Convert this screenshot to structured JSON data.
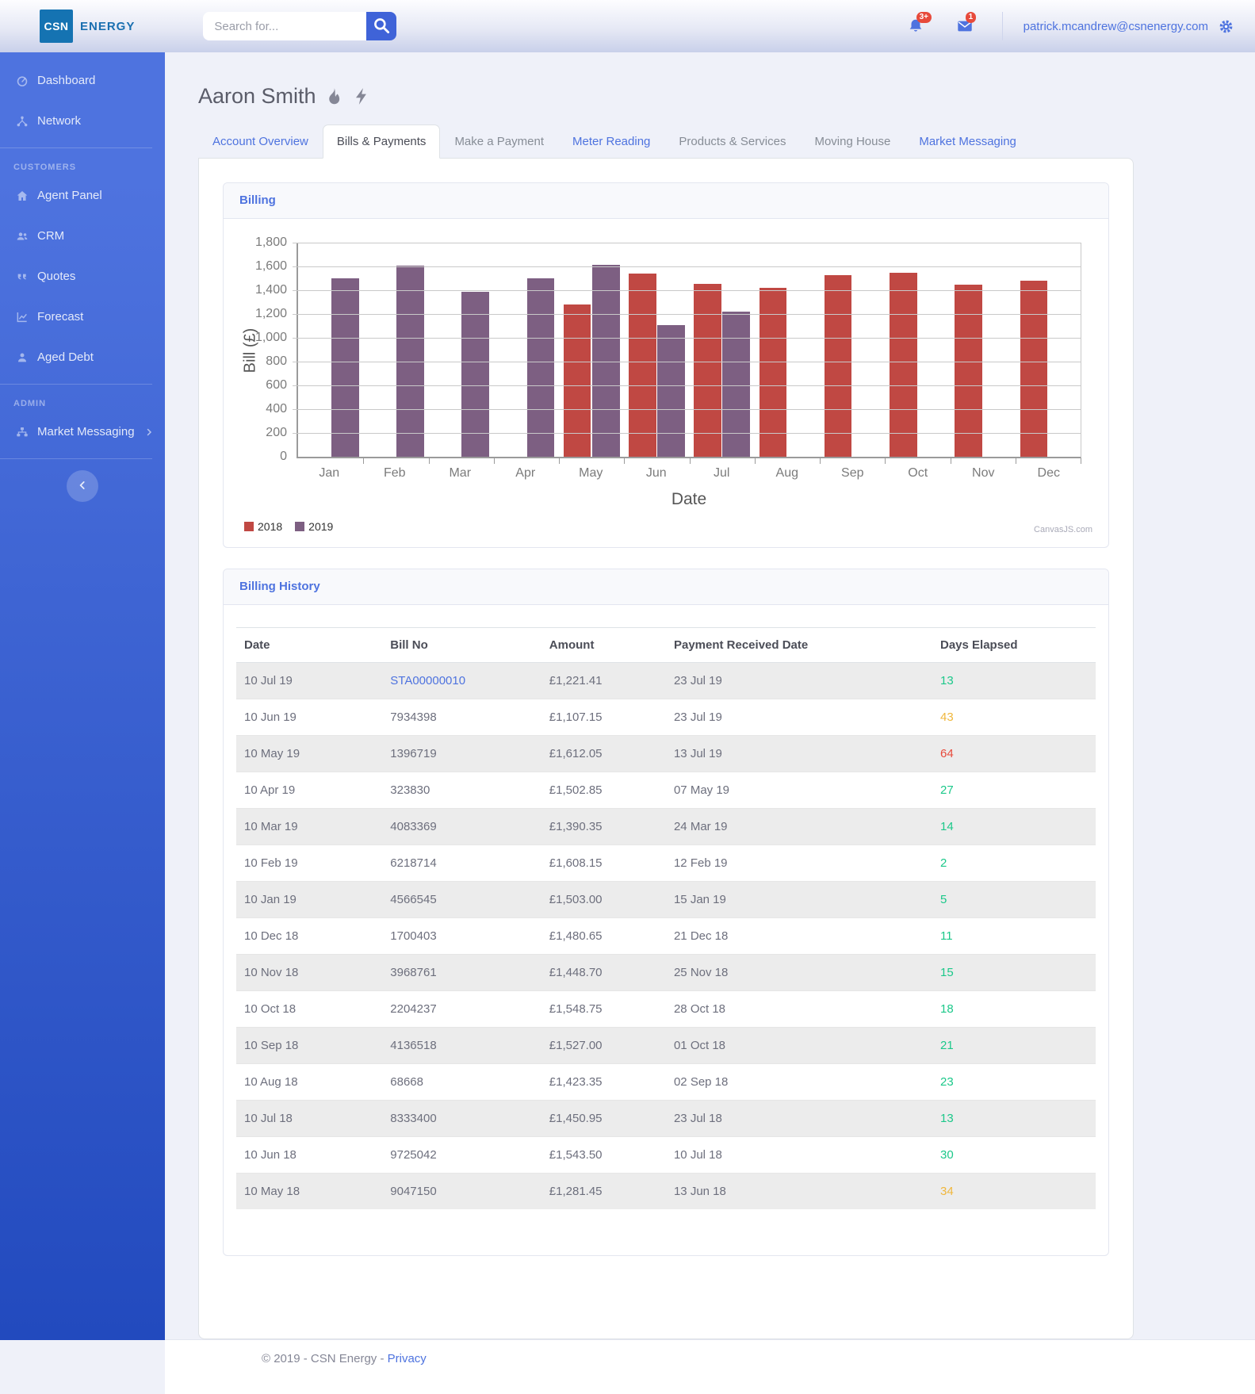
{
  "topbar": {
    "logo": {
      "abbr": "CSN",
      "name": "ENERGY"
    },
    "search": {
      "placeholder": "Search for..."
    },
    "notifications": {
      "bell_badge": "3+",
      "mail_badge": "1"
    },
    "user_email": "patrick.mcandrew@csnenergy.com"
  },
  "sidebar": {
    "sections": [
      {
        "heading": null,
        "items": [
          {
            "label": "Dashboard",
            "icon": "dashboard-icon"
          },
          {
            "label": "Network",
            "icon": "network-icon"
          }
        ]
      },
      {
        "heading": "CUSTOMERS",
        "items": [
          {
            "label": "Agent Panel",
            "icon": "home-icon"
          },
          {
            "label": "CRM",
            "icon": "users-icon"
          },
          {
            "label": "Quotes",
            "icon": "quote-icon"
          },
          {
            "label": "Forecast",
            "icon": "forecast-icon"
          },
          {
            "label": "Aged Debt",
            "icon": "person-icon"
          }
        ]
      },
      {
        "heading": "ADMIN",
        "items": [
          {
            "label": "Market Messaging",
            "icon": "sitemap-icon",
            "expandable": true
          }
        ]
      }
    ]
  },
  "page": {
    "title": "Aaron Smith",
    "title_icons": [
      "gas-icon",
      "electricity-icon"
    ],
    "tabs": [
      {
        "label": "Account Overview",
        "state": "link"
      },
      {
        "label": "Bills & Payments",
        "state": "active"
      },
      {
        "label": "Make a Payment",
        "state": "muted"
      },
      {
        "label": "Meter Reading",
        "state": "link"
      },
      {
        "label": "Products & Services",
        "state": "muted"
      },
      {
        "label": "Moving House",
        "state": "muted"
      },
      {
        "label": "Market Messaging",
        "state": "link"
      }
    ]
  },
  "billing_card": {
    "title": "Billing"
  },
  "chart_data": {
    "type": "bar",
    "title": "",
    "categories": [
      "Jan",
      "Feb",
      "Mar",
      "Apr",
      "May",
      "Jun",
      "Jul",
      "Aug",
      "Sep",
      "Oct",
      "Nov",
      "Dec"
    ],
    "series": [
      {
        "name": "2018",
        "color": "#c04843",
        "values": [
          null,
          null,
          null,
          null,
          1281.45,
          1543.5,
          1450.95,
          1423.35,
          1527.0,
          1548.75,
          1448.7,
          1480.65
        ]
      },
      {
        "name": "2019",
        "color": "#7d5f82",
        "values": [
          1503.0,
          1608.15,
          1390.35,
          1502.85,
          1612.05,
          1107.15,
          1221.41,
          null,
          null,
          null,
          null,
          null
        ]
      }
    ],
    "xlabel": "Date",
    "ylabel": "Bill (£)",
    "ylim": [
      0,
      1800
    ],
    "ytick_step": 200,
    "grid": true,
    "legend_position": "bottom-left",
    "watermark": "CanvasJS.com"
  },
  "history_card": {
    "title": "Billing History",
    "columns": [
      "Date",
      "Bill No",
      "Amount",
      "Payment Received Date",
      "Days Elapsed"
    ],
    "rows": [
      {
        "date": "10 Jul 19",
        "bill_no": "STA00000010",
        "bill_no_link": true,
        "amount": "£1,221.41",
        "received": "23 Jul 19",
        "days": "13",
        "days_color": "green"
      },
      {
        "date": "10 Jun 19",
        "bill_no": "7934398",
        "bill_no_link": false,
        "amount": "£1,107.15",
        "received": "23 Jul 19",
        "days": "43",
        "days_color": "amber"
      },
      {
        "date": "10 May 19",
        "bill_no": "1396719",
        "bill_no_link": false,
        "amount": "£1,612.05",
        "received": "13 Jul 19",
        "days": "64",
        "days_color": "red"
      },
      {
        "date": "10 Apr 19",
        "bill_no": "323830",
        "bill_no_link": false,
        "amount": "£1,502.85",
        "received": "07 May 19",
        "days": "27",
        "days_color": "green"
      },
      {
        "date": "10 Mar 19",
        "bill_no": "4083369",
        "bill_no_link": false,
        "amount": "£1,390.35",
        "received": "24 Mar 19",
        "days": "14",
        "days_color": "green"
      },
      {
        "date": "10 Feb 19",
        "bill_no": "6218714",
        "bill_no_link": false,
        "amount": "£1,608.15",
        "received": "12 Feb 19",
        "days": "2",
        "days_color": "green"
      },
      {
        "date": "10 Jan 19",
        "bill_no": "4566545",
        "bill_no_link": false,
        "amount": "£1,503.00",
        "received": "15 Jan 19",
        "days": "5",
        "days_color": "green"
      },
      {
        "date": "10 Dec 18",
        "bill_no": "1700403",
        "bill_no_link": false,
        "amount": "£1,480.65",
        "received": "21 Dec 18",
        "days": "11",
        "days_color": "green"
      },
      {
        "date": "10 Nov 18",
        "bill_no": "3968761",
        "bill_no_link": false,
        "amount": "£1,448.70",
        "received": "25 Nov 18",
        "days": "15",
        "days_color": "green"
      },
      {
        "date": "10 Oct 18",
        "bill_no": "2204237",
        "bill_no_link": false,
        "amount": "£1,548.75",
        "received": "28 Oct 18",
        "days": "18",
        "days_color": "green"
      },
      {
        "date": "10 Sep 18",
        "bill_no": "4136518",
        "bill_no_link": false,
        "amount": "£1,527.00",
        "received": "01 Oct 18",
        "days": "21",
        "days_color": "green"
      },
      {
        "date": "10 Aug 18",
        "bill_no": "68668",
        "bill_no_link": false,
        "amount": "£1,423.35",
        "received": "02 Sep 18",
        "days": "23",
        "days_color": "green"
      },
      {
        "date": "10 Jul 18",
        "bill_no": "8333400",
        "bill_no_link": false,
        "amount": "£1,450.95",
        "received": "23 Jul 18",
        "days": "13",
        "days_color": "green"
      },
      {
        "date": "10 Jun 18",
        "bill_no": "9725042",
        "bill_no_link": false,
        "amount": "£1,543.50",
        "received": "10 Jul 18",
        "days": "30",
        "days_color": "green"
      },
      {
        "date": "10 May 18",
        "bill_no": "9047150",
        "bill_no_link": false,
        "amount": "£1,281.45",
        "received": "13 Jun 18",
        "days": "34",
        "days_color": "amber"
      }
    ]
  },
  "footer": {
    "copyright": "© 2019 - CSN Energy -",
    "privacy_label": "Privacy"
  },
  "colors": {
    "accent": "#4e73df",
    "badge_red": "#e74a3b",
    "green": "#1cc88a",
    "amber": "#f0b73d",
    "red": "#e74a3b",
    "stripe": "#ececec"
  }
}
